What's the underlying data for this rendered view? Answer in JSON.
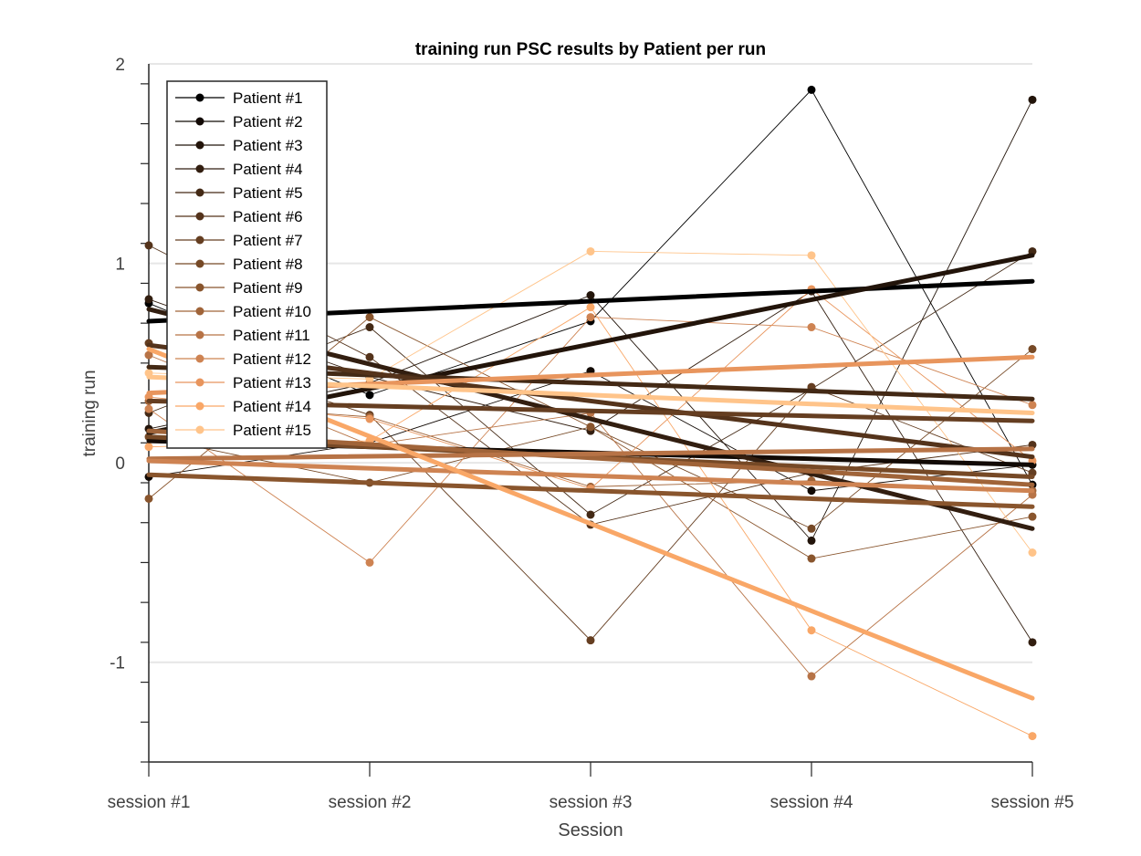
{
  "chart_data": {
    "type": "line",
    "title": "training run  PSC results by Patient per run",
    "xlabel": "Session",
    "ylabel": "training run",
    "categories": [
      "session #1",
      "session #2",
      "session #3",
      "session #4",
      "session #5"
    ],
    "ylim": [
      -1.5,
      2
    ],
    "yticks": [
      -1,
      0,
      1,
      2
    ],
    "ytick_labels": [
      "-1",
      "0",
      "1",
      "2"
    ],
    "grid": "horizontal",
    "legend_position": "top-left",
    "series": [
      {
        "name": "Patient #1",
        "color": "#000000",
        "values": [
          0.8,
          0.34,
          0.71,
          1.87,
          -0.11
        ],
        "trend": [
          0.71,
          0.91
        ]
      },
      {
        "name": "Patient #2",
        "color": "#120a05",
        "values": [
          -0.07,
          0.1,
          0.46,
          -0.14,
          -0.01
        ],
        "trend": [
          0.11,
          -0.01
        ]
      },
      {
        "name": "Patient #3",
        "color": "#22140a",
        "values": [
          0.17,
          0.4,
          0.84,
          -0.39,
          1.82
        ],
        "trend": [
          0.15,
          1.04
        ]
      },
      {
        "name": "Patient #4",
        "color": "#321e10",
        "values": [
          0.82,
          0.43,
          0.16,
          0.86,
          -0.9
        ],
        "trend": [
          0.77,
          -0.33
        ]
      },
      {
        "name": "Patient #5",
        "color": "#432915",
        "values": [
          0.25,
          0.68,
          -0.26,
          0.37,
          1.06
        ],
        "trend": [
          0.48,
          0.32
        ]
      },
      {
        "name": "Patient #6",
        "color": "#54331b",
        "values": [
          1.09,
          0.53,
          -0.31,
          -0.05,
          0.09
        ],
        "trend": [
          0.59,
          0.03
        ]
      },
      {
        "name": "Patient #7",
        "color": "#653e21",
        "values": [
          0.6,
          0.24,
          -0.89,
          0.38,
          -0.05
        ],
        "trend": [
          0.31,
          0.21
        ]
      },
      {
        "name": "Patient #8",
        "color": "#764926",
        "values": [
          0.13,
          -0.1,
          0.18,
          -0.33,
          0.57
        ],
        "trend": [
          0.13,
          -0.07
        ]
      },
      {
        "name": "Patient #9",
        "color": "#89552d",
        "values": [
          -0.18,
          0.73,
          0.18,
          -0.48,
          -0.27
        ],
        "trend": [
          -0.06,
          -0.22
        ]
      },
      {
        "name": "Patient #10",
        "color": "#a06439",
        "values": [
          0.31,
          0.23,
          -0.12,
          -0.09,
          -0.14
        ],
        "trend": [
          0.16,
          -0.11
        ]
      },
      {
        "name": "Patient #11",
        "color": "#b77346",
        "values": [
          0.54,
          0.09,
          0.25,
          -1.07,
          -0.16
        ],
        "trend": [
          0.02,
          0.07
        ]
      },
      {
        "name": "Patient #12",
        "color": "#ce8352",
        "values": [
          0.27,
          -0.5,
          0.73,
          0.68,
          0.29
        ],
        "trend": [
          0.01,
          -0.14
        ]
      },
      {
        "name": "Patient #13",
        "color": "#e8955d",
        "values": [
          0.33,
          0.22,
          -0.13,
          0.87,
          0.01
        ],
        "trend": [
          0.35,
          0.53
        ]
      },
      {
        "name": "Patient #14",
        "color": "#f9a767",
        "values": [
          0.08,
          0.11,
          0.78,
          -0.84,
          -1.37
        ],
        "trend": [
          0.57,
          -1.18
        ]
      },
      {
        "name": "Patient #15",
        "color": "#ffc48a",
        "values": [
          0.45,
          0.42,
          1.06,
          1.04,
          -0.45
        ],
        "trend": [
          0.43,
          0.25
        ]
      }
    ]
  }
}
